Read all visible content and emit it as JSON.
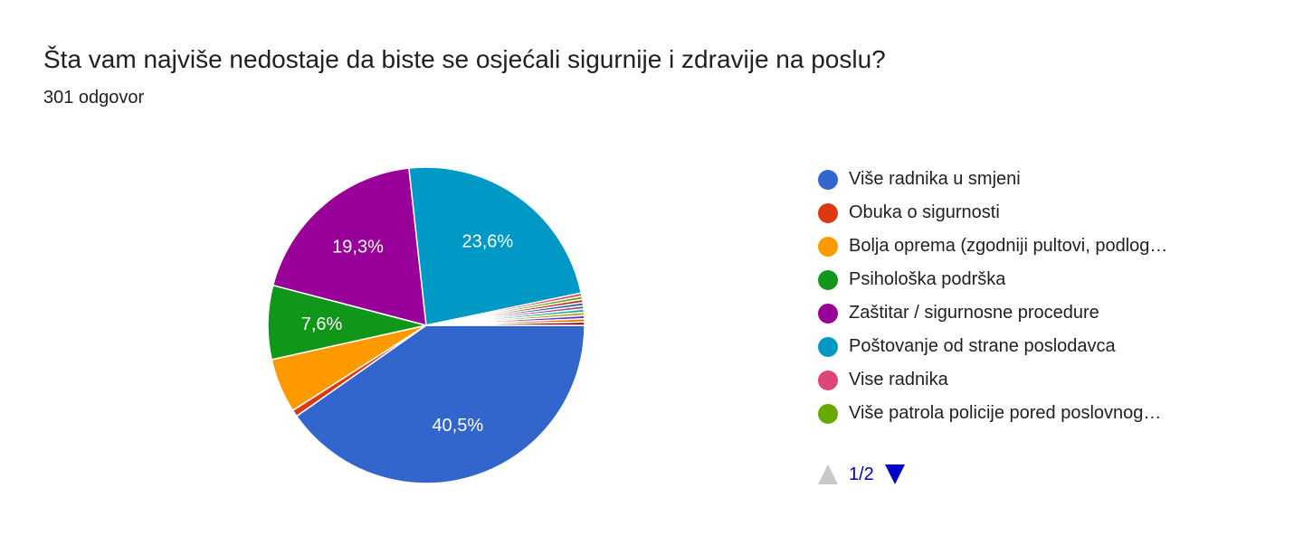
{
  "chart_data": {
    "type": "pie",
    "title": "Šta vam najviše nedostaje da biste se osjećali sigurnije i zdravije na poslu?",
    "subtitle": "301 odgovor",
    "legend_position": "right",
    "slices": [
      {
        "label": "Više radnika u smjeni",
        "value": 40.5,
        "color": "#3366cc",
        "show_label": true,
        "label_color": "#ffffff"
      },
      {
        "label": "Obuka o sigurnosti",
        "value": 0.7,
        "color": "#dc3912",
        "show_label": false
      },
      {
        "label": "Bolja oprema (zgodniji pultovi, podlog…",
        "value": 5.6,
        "color": "#ff9900",
        "show_label": false
      },
      {
        "label": "Psihološka podrška",
        "value": 7.6,
        "color": "#109618",
        "show_label": true,
        "label_color": "#ffffff"
      },
      {
        "label": "Zaštitar / sigurnosne procedure",
        "value": 19.3,
        "color": "#990099",
        "show_label": true,
        "label_color": "#ffffff"
      },
      {
        "label": "Poštovanje od strane poslodavca",
        "value": 23.6,
        "color": "#0099c6",
        "show_label": true,
        "label_color": "#ffffff"
      },
      {
        "label": "Vise radnika",
        "value": 0.33,
        "color": "#dd4477",
        "show_label": false
      },
      {
        "label": "Više patrola policije pored poslovnog…",
        "value": 0.33,
        "color": "#66aa00",
        "show_label": false
      },
      {
        "label": "",
        "value": 0.33,
        "color": "#b82e2e",
        "show_label": false
      },
      {
        "label": "",
        "value": 0.33,
        "color": "#316395",
        "show_label": false
      },
      {
        "label": "",
        "value": 0.33,
        "color": "#994499",
        "show_label": false
      },
      {
        "label": "",
        "value": 0.33,
        "color": "#22aa99",
        "show_label": false
      },
      {
        "label": "",
        "value": 0.33,
        "color": "#aaaa11",
        "show_label": false
      },
      {
        "label": "",
        "value": 0.33,
        "color": "#6633cc",
        "show_label": false
      },
      {
        "label": "",
        "value": 0.33,
        "color": "#e67300",
        "show_label": false
      },
      {
        "label": "",
        "value": 0.33,
        "color": "#8b0707",
        "show_label": false
      }
    ],
    "data_labels": [
      "40,5%",
      "",
      "",
      "7,6%",
      "19,3%",
      "23,6%"
    ]
  },
  "legend": {
    "items": [
      {
        "label": "Više radnika u smjeni",
        "color": "#3366cc"
      },
      {
        "label": "Obuka o sigurnosti",
        "color": "#dc3912"
      },
      {
        "label": "Bolja oprema (zgodniji pultovi, podlog…",
        "color": "#ff9900"
      },
      {
        "label": "Psihološka podrška",
        "color": "#109618"
      },
      {
        "label": "Zaštitar / sigurnosne procedure",
        "color": "#990099"
      },
      {
        "label": "Poštovanje od strane poslodavca",
        "color": "#0099c6"
      },
      {
        "label": "Vise radnika",
        "color": "#dd4477"
      },
      {
        "label": "Više patrola policije pored poslovnog…",
        "color": "#66aa00"
      }
    ]
  },
  "pager": {
    "text": "1/2",
    "prev_icon": "triangle-up-icon",
    "next_icon": "triangle-down-icon",
    "prev_color": "#c8c8c8",
    "next_color": "#0000cc"
  }
}
